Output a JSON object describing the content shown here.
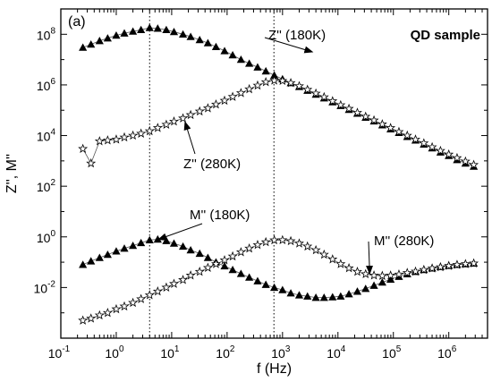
{
  "chart_data": {
    "type": "scatter",
    "panel_label": "(a)",
    "sample_label": "QD sample",
    "xlabel": "f (Hz)",
    "ylabel": "Z'', M''",
    "xscale": "log",
    "yscale": "log",
    "xlim": [
      0.1,
      5000000
    ],
    "ylim": [
      0.0001,
      1000000000
    ],
    "x_ticks": [
      {
        "base": "10",
        "exp": "-1"
      },
      {
        "base": "10",
        "exp": "0"
      },
      {
        "base": "10",
        "exp": "1"
      },
      {
        "base": "10",
        "exp": "2"
      },
      {
        "base": "10",
        "exp": "3"
      },
      {
        "base": "10",
        "exp": "4"
      },
      {
        "base": "10",
        "exp": "5"
      },
      {
        "base": "10",
        "exp": "6"
      }
    ],
    "y_ticks": [
      {
        "base": "10",
        "exp": "-2"
      },
      {
        "base": "10",
        "exp": "0"
      },
      {
        "base": "10",
        "exp": "2"
      },
      {
        "base": "10",
        "exp": "4"
      },
      {
        "base": "10",
        "exp": "6"
      },
      {
        "base": "10",
        "exp": "8"
      }
    ],
    "vertical_lines": [
      4,
      700
    ],
    "series": [
      {
        "label": "Z'' (180K)",
        "marker": "filled-triangle",
        "x": [
          0.25,
          0.35,
          0.5,
          0.7,
          1,
          1.4,
          2,
          2.8,
          4,
          5.6,
          8,
          11,
          16,
          22,
          32,
          45,
          63,
          90,
          126,
          178,
          251,
          355,
          500,
          710,
          1000,
          1410,
          2000,
          2820,
          4000,
          5620,
          8000,
          11200,
          15800,
          22400,
          31600,
          44700,
          63100,
          89100,
          126000,
          178000,
          251000,
          355000,
          501000,
          708000,
          1000000,
          1410000,
          2000000,
          2820000
        ],
        "y": [
          30000000,
          40000000,
          55000000,
          70000000,
          90000000,
          110000000,
          130000000,
          150000000,
          180000000,
          170000000,
          150000000,
          125000000,
          100000000,
          80000000,
          60000000,
          45000000,
          32000000,
          22000000,
          15000000,
          10000000,
          7000000,
          5000000,
          3500000,
          2400000,
          1700000,
          1200000,
          850000,
          600000,
          420000,
          300000,
          210000,
          150000,
          105000,
          75000,
          52000,
          37000,
          26000,
          18000,
          13000,
          9000,
          6500,
          4500,
          3200,
          2200,
          1600,
          1100,
          800,
          600
        ]
      },
      {
        "label": "Z'' (280K)",
        "marker": "open-star",
        "x": [
          0.25,
          0.35,
          0.5,
          0.7,
          1,
          1.4,
          2,
          2.8,
          4,
          5.6,
          8,
          11,
          16,
          22,
          32,
          45,
          63,
          90,
          126,
          178,
          251,
          355,
          500,
          710,
          1000,
          1410,
          2000,
          2820,
          4000,
          5620,
          8000,
          11200,
          15800,
          22400,
          31600,
          44700,
          63100,
          89100,
          126000,
          178000,
          251000,
          355000,
          501000,
          708000,
          1000000,
          1410000,
          2000000,
          2820000
        ],
        "y": [
          3000,
          800,
          6000,
          6500,
          7000,
          8500,
          10000,
          12000,
          15000,
          20000,
          27000,
          36000,
          48000,
          65000,
          90000,
          120000,
          170000,
          240000,
          340000,
          480000,
          680000,
          950000,
          1300000,
          1500000,
          1450000,
          1200000,
          900000,
          650000,
          460000,
          330000,
          230000,
          160000,
          115000,
          80000,
          56000,
          40000,
          28000,
          20000,
          14000,
          10000,
          7000,
          5000,
          3500,
          2500,
          1800,
          1300,
          950,
          700
        ]
      },
      {
        "label": "M'' (180K)",
        "marker": "filled-triangle",
        "x": [
          0.25,
          0.35,
          0.5,
          0.7,
          1,
          1.4,
          2,
          2.8,
          4,
          5.6,
          8,
          11,
          16,
          22,
          32,
          45,
          63,
          90,
          126,
          178,
          251,
          355,
          500,
          710,
          1000,
          1410,
          2000,
          2820,
          4000,
          5620,
          8000,
          11200,
          15800,
          22400,
          31600,
          44700,
          63100,
          89100,
          126000,
          178000,
          251000,
          355000,
          501000,
          708000,
          1000000,
          1410000,
          2000000,
          2820000
        ],
        "y": [
          0.08,
          0.11,
          0.15,
          0.2,
          0.27,
          0.35,
          0.45,
          0.58,
          0.75,
          0.8,
          0.7,
          0.55,
          0.42,
          0.3,
          0.22,
          0.15,
          0.1,
          0.07,
          0.05,
          0.035,
          0.025,
          0.018,
          0.013,
          0.01,
          0.008,
          0.006,
          0.005,
          0.0045,
          0.004,
          0.004,
          0.0042,
          0.0045,
          0.0055,
          0.007,
          0.009,
          0.012,
          0.016,
          0.021,
          0.027,
          0.034,
          0.042,
          0.05,
          0.058,
          0.066,
          0.073,
          0.08,
          0.085,
          0.09
        ]
      },
      {
        "label": "M'' (280K)",
        "marker": "open-star",
        "x": [
          0.25,
          0.35,
          0.5,
          0.7,
          1,
          1.4,
          2,
          2.8,
          4,
          5.6,
          8,
          11,
          16,
          22,
          32,
          45,
          63,
          90,
          126,
          178,
          251,
          355,
          500,
          710,
          1000,
          1410,
          2000,
          2820,
          4000,
          5620,
          8000,
          11200,
          15800,
          22400,
          31600,
          44700,
          63100,
          89100,
          126000,
          178000,
          251000,
          355000,
          501000,
          708000,
          1000000,
          1410000,
          2000000,
          2820000
        ],
        "y": [
          0.0005,
          0.0006,
          0.0008,
          0.001,
          0.0014,
          0.0018,
          0.0025,
          0.0035,
          0.005,
          0.007,
          0.01,
          0.014,
          0.02,
          0.03,
          0.042,
          0.06,
          0.085,
          0.12,
          0.17,
          0.25,
          0.35,
          0.48,
          0.62,
          0.74,
          0.75,
          0.68,
          0.55,
          0.42,
          0.3,
          0.2,
          0.13,
          0.085,
          0.058,
          0.042,
          0.034,
          0.03,
          0.029,
          0.03,
          0.033,
          0.038,
          0.043,
          0.05,
          0.057,
          0.064,
          0.072,
          0.079,
          0.085,
          0.09
        ]
      }
    ],
    "annotations": [
      {
        "text": "Z'' (180K)",
        "target_x": 3000,
        "target_y": 20000000
      },
      {
        "text": "Z'' (280K)",
        "target_x": 15,
        "target_y": 48000
      },
      {
        "text": "M'' (180K)",
        "target_x": 5,
        "target_y": 0.8
      },
      {
        "text": "M'' (280K)",
        "target_x": 30000,
        "target_y": 0.035
      }
    ]
  }
}
